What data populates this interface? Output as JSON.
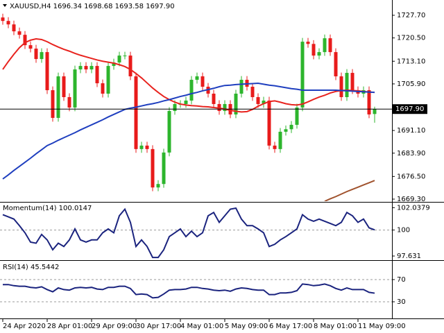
{
  "chart_data": [
    {
      "type": "candlestick",
      "title": "XAUUSD,H4  1696.34 1698.68 1693.58 1697.90",
      "categories": [
        "24 Apr 2020",
        null,
        null,
        null,
        null,
        null,
        null,
        null,
        "28 Apr 01:00",
        null,
        null,
        null,
        null,
        null,
        null,
        null,
        "29 Apr 09:00",
        null,
        null,
        null,
        null,
        null,
        null,
        null,
        "30 Apr 17:00",
        null,
        null,
        null,
        null,
        null,
        null,
        null,
        "4 May 01:00",
        null,
        null,
        null,
        null,
        null,
        null,
        null,
        "5 May 09:00",
        null,
        null,
        null,
        null,
        null,
        null,
        null,
        "6 May 17:00",
        null,
        null,
        null,
        null,
        null,
        null,
        null,
        "8 May 01:00",
        null,
        null,
        null,
        null,
        null,
        null,
        null,
        "11 May 09:00",
        null,
        null,
        null
      ],
      "open": [
        1727.0,
        1725.9,
        1724.8,
        1722.6,
        1721.5,
        1718.2,
        1717.1,
        1713.8,
        1716.0,
        1703.9,
        1695.1,
        1708.3,
        1701.7,
        1698.4,
        1710.5,
        1711.6,
        1710.5,
        1711.6,
        1706.1,
        1702.8,
        1711.6,
        1712.7,
        1714.9,
        1714.9,
        1708.3,
        1685.2,
        1686.3,
        1685.2,
        1673.0,
        1674.1,
        1684.1,
        1697.3,
        1699.5,
        1699.5,
        1700.6,
        1707.2,
        1708.3,
        1705.0,
        1702.8,
        1699.5,
        1697.3,
        1699.5,
        1696.2,
        1702.8,
        1707.2,
        1705.0,
        1701.7,
        1699.5,
        1700.6,
        1686.3,
        1685.2,
        1690.7,
        1691.5,
        1692.9,
        1698.4,
        1719.3,
        1718.6,
        1714.9,
        1716.0,
        1720.4,
        1716.0,
        1708.3,
        1701.7,
        1709.4,
        1703.9,
        1702.8,
        1703.9,
        1696.34
      ],
      "high": [
        1728.2,
        1727.1,
        1726.0,
        1723.8,
        1722.7,
        1719.4,
        1718.3,
        1717.2,
        1717.2,
        1705.1,
        1709.5,
        1709.5,
        1702.9,
        1711.7,
        1712.8,
        1712.8,
        1712.8,
        1712.8,
        1707.3,
        1712.8,
        1713.9,
        1716.1,
        1716.1,
        1716.1,
        1709.5,
        1687.5,
        1687.5,
        1686.4,
        1675.3,
        1685.3,
        1698.5,
        1700.7,
        1700.7,
        1701.8,
        1708.4,
        1709.5,
        1709.5,
        1706.2,
        1704.0,
        1700.7,
        1700.7,
        1700.7,
        1704.0,
        1708.4,
        1708.4,
        1706.2,
        1702.9,
        1701.8,
        1701.8,
        1687.5,
        1691.9,
        1692.7,
        1694.1,
        1699.6,
        1720.5,
        1720.5,
        1719.8,
        1717.2,
        1721.6,
        1721.6,
        1717.2,
        1709.5,
        1710.6,
        1710.6,
        1705.1,
        1705.1,
        1705.1,
        1698.68
      ],
      "low": [
        1724.7,
        1723.6,
        1721.4,
        1720.3,
        1717.0,
        1715.9,
        1712.6,
        1712.6,
        1702.7,
        1693.9,
        1693.9,
        1700.5,
        1697.2,
        1697.2,
        1709.3,
        1709.3,
        1709.3,
        1704.9,
        1701.6,
        1701.6,
        1710.4,
        1711.5,
        1713.7,
        1707.1,
        1684.0,
        1684.0,
        1684.0,
        1671.8,
        1671.8,
        1672.9,
        1682.9,
        1696.1,
        1698.3,
        1698.3,
        1699.4,
        1706.0,
        1703.8,
        1701.6,
        1698.3,
        1696.1,
        1696.1,
        1695.0,
        1695.0,
        1701.6,
        1703.8,
        1700.5,
        1698.3,
        1698.3,
        1685.1,
        1684.0,
        1684.0,
        1689.5,
        1690.3,
        1691.7,
        1697.2,
        1717.4,
        1713.7,
        1713.7,
        1714.8,
        1714.8,
        1707.1,
        1700.5,
        1700.5,
        1702.7,
        1701.6,
        1701.6,
        1695.0,
        1693.58
      ],
      "close": [
        1725.9,
        1724.8,
        1722.6,
        1721.5,
        1718.2,
        1717.1,
        1713.8,
        1716.0,
        1703.9,
        1695.1,
        1708.3,
        1701.7,
        1698.4,
        1710.5,
        1711.6,
        1710.5,
        1711.6,
        1706.1,
        1702.8,
        1711.6,
        1712.7,
        1714.9,
        1714.9,
        1708.3,
        1685.2,
        1686.3,
        1685.2,
        1673.0,
        1674.1,
        1684.1,
        1697.3,
        1699.5,
        1699.5,
        1700.6,
        1707.2,
        1708.3,
        1705.0,
        1702.8,
        1699.5,
        1697.3,
        1699.5,
        1696.2,
        1702.8,
        1707.2,
        1705.0,
        1701.7,
        1699.5,
        1700.6,
        1686.3,
        1685.2,
        1690.7,
        1691.5,
        1692.9,
        1698.4,
        1719.3,
        1718.6,
        1714.9,
        1716.0,
        1720.4,
        1716.0,
        1708.3,
        1701.7,
        1709.4,
        1703.9,
        1702.8,
        1703.9,
        1696.2,
        1697.9
      ],
      "up_color": "#2db52d",
      "down_color": "#e81b1b",
      "overlays": [
        {
          "color": "#e8231e",
          "values": [
            1710.5,
            1713.0,
            1715.3,
            1717.4,
            1719.0,
            1719.8,
            1720.2,
            1720.0,
            1719.3,
            1718.4,
            1717.6,
            1716.9,
            1716.3,
            1715.6,
            1715.0,
            1714.5,
            1714.0,
            1713.5,
            1713.1,
            1712.8,
            1712.5,
            1712.0,
            1711.4,
            1710.5,
            1709.2,
            1707.8,
            1706.2,
            1704.6,
            1703.2,
            1701.9,
            1700.9,
            1700.1,
            1699.5,
            1699.2,
            1699.0,
            1698.9,
            1698.7,
            1698.6,
            1698.4,
            1698.2,
            1697.9,
            1697.5,
            1697.2,
            1697.0,
            1697.1,
            1697.8,
            1698.8,
            1699.6,
            1700.3,
            1700.5,
            1700.1,
            1699.6,
            1699.3,
            1699.2,
            1699.5,
            1700.2,
            1701.0,
            1701.7,
            1702.3,
            1703.0,
            1703.5,
            1703.8,
            1703.9,
            1703.8,
            1703.7,
            1703.5,
            1703.3,
            1703.2
          ]
        },
        {
          "color": "#1f3fbf",
          "values": [
            1675.7,
            1677.0,
            1678.4,
            1679.7,
            1681.0,
            1682.3,
            1683.7,
            1685.0,
            1686.3,
            1687.1,
            1688.0,
            1688.8,
            1689.6,
            1690.4,
            1691.3,
            1692.1,
            1692.9,
            1693.7,
            1694.5,
            1695.4,
            1696.2,
            1697.0,
            1697.8,
            1698.2,
            1698.5,
            1698.9,
            1699.3,
            1699.6,
            1700.0,
            1700.5,
            1700.9,
            1701.4,
            1701.9,
            1702.3,
            1702.8,
            1703.2,
            1703.7,
            1704.1,
            1704.5,
            1705.0,
            1705.4,
            1705.5,
            1705.7,
            1705.8,
            1705.9,
            1706.0,
            1706.1,
            1705.8,
            1705.5,
            1705.3,
            1705.0,
            1704.7,
            1704.4,
            1704.2,
            1703.9,
            1703.9,
            1703.9,
            1703.9,
            1703.9,
            1703.9,
            1703.9,
            1703.8,
            1703.7,
            1703.6,
            1703.5,
            1703.4,
            1703.3,
            1703.2
          ]
        },
        {
          "color": "#a0522d",
          "values": [
            null,
            null,
            null,
            null,
            null,
            null,
            null,
            null,
            null,
            null,
            null,
            null,
            null,
            null,
            null,
            null,
            null,
            null,
            null,
            null,
            null,
            null,
            null,
            null,
            null,
            null,
            null,
            null,
            null,
            null,
            null,
            null,
            null,
            null,
            null,
            null,
            null,
            null,
            null,
            null,
            null,
            null,
            null,
            null,
            null,
            null,
            null,
            null,
            null,
            null,
            null,
            null,
            null,
            null,
            null,
            null,
            null,
            null,
            1668.6,
            1669.4,
            1670.1,
            1670.9,
            1671.7,
            1672.4,
            1673.1,
            1673.8,
            1674.5,
            1675.2
          ]
        }
      ],
      "current_price": {
        "value": 1697.9,
        "label": "1697.90"
      },
      "ylim": [
        1668.64,
        1731.45
      ],
      "yticks": [
        {
          "value": 1727.7,
          "label": "1727.70"
        },
        {
          "value": 1720.5,
          "label": "1720.50"
        },
        {
          "value": 1713.1,
          "label": "1713.10"
        },
        {
          "value": 1705.9,
          "label": "1705.90"
        },
        {
          "value": 1691.1,
          "label": "1691.10"
        },
        {
          "value": 1683.9,
          "label": "1683.90"
        },
        {
          "value": 1676.5,
          "label": "1676.50"
        },
        {
          "value": 1669.3,
          "label": "1669.30"
        }
      ]
    },
    {
      "type": "line",
      "title": "Momentum(14) 100.0147",
      "color": "#1a237e",
      "values": [
        101.4,
        101.2,
        101.0,
        100.4,
        99.75,
        98.9,
        98.8,
        99.6,
        99.1,
        98.2,
        98.8,
        98.5,
        99.1,
        100.1,
        99.1,
        98.9,
        99.1,
        99.1,
        99.75,
        100.1,
        99.75,
        101.3,
        101.9,
        100.7,
        98.5,
        99.1,
        98.5,
        97.5,
        97.5,
        98.2,
        99.4,
        99.75,
        100.1,
        99.4,
        99.9,
        99.4,
        99.75,
        101.3,
        101.6,
        100.7,
        101.3,
        101.9,
        102.0,
        101.0,
        100.4,
        100.4,
        100.1,
        99.75,
        98.5,
        98.7,
        99.1,
        99.4,
        99.75,
        100.1,
        101.4,
        101.0,
        100.8,
        101.0,
        100.8,
        100.6,
        100.4,
        100.7,
        101.6,
        101.3,
        100.7,
        101.0,
        100.2,
        100.0147
      ],
      "ylim": [
        97.38,
        102.44
      ],
      "yticks": [
        102.0379,
        100,
        97.631
      ],
      "levels": [
        100
      ]
    },
    {
      "type": "line",
      "title": "RSI(14) 45.5442",
      "color": "#1a237e",
      "values": [
        61,
        61,
        59,
        58,
        58,
        56,
        55,
        57,
        52,
        48,
        55,
        52,
        51,
        55,
        56,
        55,
        56,
        53,
        52,
        56,
        56,
        58,
        58,
        54,
        43,
        44,
        43,
        37,
        38,
        44,
        51,
        52,
        52,
        53,
        56,
        56,
        54,
        53,
        51,
        50,
        51,
        49,
        53,
        55,
        54,
        52,
        51,
        51,
        43,
        43,
        46,
        46,
        47,
        50,
        62,
        61,
        59,
        60,
        62,
        59,
        54,
        51,
        55,
        52,
        52,
        52,
        47,
        45.5442
      ],
      "ylim": [
        0,
        100
      ],
      "yticks": [
        70,
        30
      ],
      "levels": [
        70,
        30
      ]
    }
  ]
}
